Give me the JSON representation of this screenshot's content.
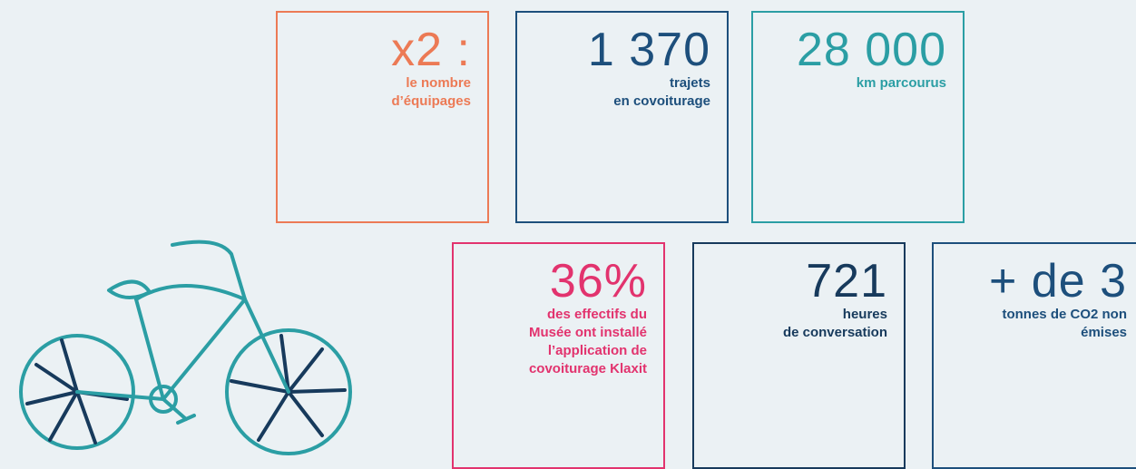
{
  "tiles": [
    {
      "figure": "x2 :",
      "lines": [
        "le nombre",
        "d’équipages"
      ],
      "color": "#ec7a55"
    },
    {
      "figure": "1 370",
      "lines": [
        "trajets",
        "en covoiturage"
      ],
      "color": "#1d4f7c"
    },
    {
      "figure": "28 000",
      "lines": [
        "km parcourus"
      ],
      "color": "#2b9ea4"
    },
    {
      "figure": "36%",
      "lines": [
        "des effectifs du",
        "Musée ont installé",
        "l’application de",
        "covoiturage Klaxit"
      ],
      "color": "#e2336e"
    },
    {
      "figure": "721",
      "lines": [
        "heures",
        "de conversation"
      ],
      "color": "#173a5c"
    },
    {
      "figure": "+ de 3",
      "lines": [
        "tonnes de CO2 non",
        "émises"
      ],
      "color": "#1d4f7c"
    }
  ]
}
